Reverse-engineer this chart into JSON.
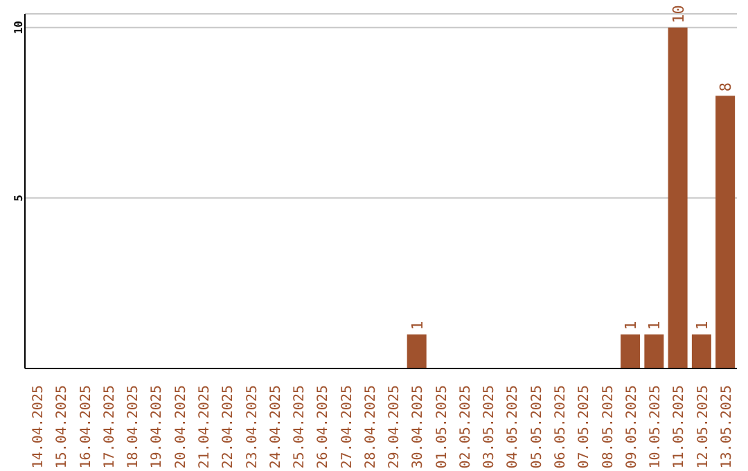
{
  "chart_data": {
    "type": "bar",
    "categories": [
      "14.04.2025",
      "15.04.2025",
      "16.04.2025",
      "17.04.2025",
      "18.04.2025",
      "19.04.2025",
      "20.04.2025",
      "21.04.2025",
      "22.04.2025",
      "23.04.2025",
      "24.04.2025",
      "25.04.2025",
      "26.04.2025",
      "27.04.2025",
      "28.04.2025",
      "29.04.2025",
      "30.04.2025",
      "01.05.2025",
      "02.05.2025",
      "03.05.2025",
      "04.05.2025",
      "05.05.2025",
      "06.05.2025",
      "07.05.2025",
      "08.05.2025",
      "09.05.2025",
      "10.05.2025",
      "11.05.2025",
      "12.05.2025",
      "13.05.2025"
    ],
    "values": [
      0,
      0,
      0,
      0,
      0,
      0,
      0,
      0,
      0,
      0,
      0,
      0,
      0,
      0,
      0,
      0,
      1,
      0,
      0,
      0,
      0,
      0,
      0,
      0,
      0,
      1,
      1,
      10,
      1,
      8
    ],
    "value_labels": [
      null,
      null,
      null,
      null,
      null,
      null,
      null,
      null,
      null,
      null,
      null,
      null,
      null,
      null,
      null,
      null,
      "1",
      null,
      null,
      null,
      null,
      null,
      null,
      null,
      null,
      "1",
      "1",
      "10",
      "1",
      "8"
    ],
    "color": "#a0522d",
    "ylim": [
      0,
      10.4
    ],
    "yticks": [
      5,
      10
    ],
    "grid": "y"
  }
}
